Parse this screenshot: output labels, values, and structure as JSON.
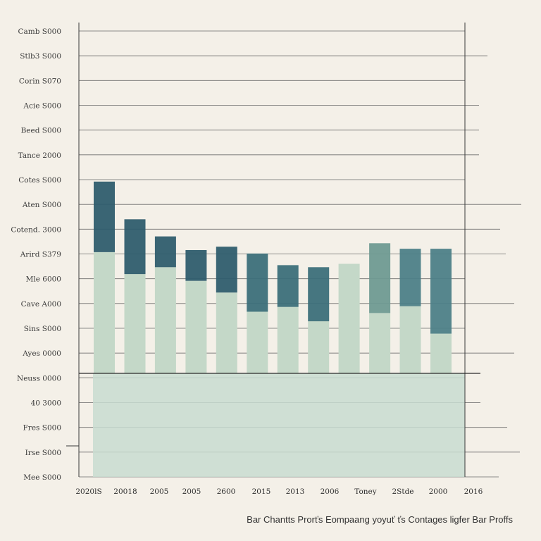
{
  "chart_data": {
    "type": "bar",
    "title": "",
    "caption": "Bar Chantts Prorťs Eompaang yoyuť ťs Contages ligfer Bar Proffs",
    "y_ticks": [
      "Camb S000",
      "Stlb3 S000",
      "Corin S070",
      "Acie S000",
      "Beed S000",
      "Tance 2000",
      "Cotes S000",
      "Aten S000",
      "Cotend. 3000",
      "Arird S379",
      "Mle 6000",
      "Cave A000",
      "Sins S000",
      "Ayes 0000",
      "Neuss 0000",
      "40 3000",
      "Fres S000",
      "Irse S000",
      "Mee S000"
    ],
    "categories": [
      "2020lS",
      "20018",
      "2005",
      "2005",
      "2600",
      "2015",
      "2013",
      "2006",
      "Toney",
      "2Stde",
      "2000",
      "2016"
    ],
    "series": [
      {
        "name": "",
        "color": "#2f5d6e",
        "values": [
          280,
          225,
          200,
          180,
          185,
          175,
          158,
          155,
          160,
          190,
          182,
          182
        ]
      },
      {
        "name": "",
        "color": "#c4d8c8",
        "values": [
          177,
          145,
          155,
          135,
          118,
          90,
          97,
          76,
          160,
          88,
          98,
          58
        ]
      }
    ],
    "base_band": {
      "color": "#c8dcd0"
    },
    "ylim": [
      -150,
      500
    ],
    "grid": true,
    "legend": "none"
  }
}
